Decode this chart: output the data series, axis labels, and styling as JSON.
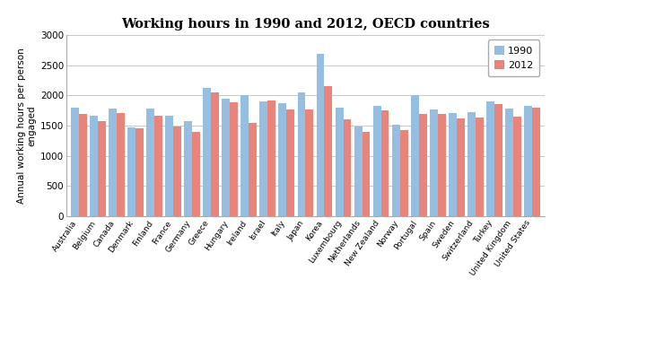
{
  "title": "Working hours in 1990 and 2012, OECD countries",
  "ylabel": "Annual working hours per person\nengaged",
  "categories": [
    "Australia",
    "Belgium",
    "Canada",
    "Denmark",
    "Finland",
    "France",
    "Germany",
    "Greece",
    "Hungary",
    "Ireland",
    "Israel",
    "Italy",
    "Japan",
    "Korea",
    "Luxembourg",
    "Netherlands",
    "New Zealand",
    "Norway",
    "Portugal",
    "Spain",
    "Sweden",
    "Switzerland",
    "Turkey",
    "United Kingdom",
    "United States"
  ],
  "values_1990": [
    1800,
    1670,
    1780,
    1475,
    1780,
    1665,
    1580,
    2120,
    1950,
    2010,
    1900,
    1870,
    2050,
    2680,
    1800,
    1480,
    1820,
    1510,
    2010,
    1770,
    1710,
    1720,
    1900,
    1780,
    1830
  ],
  "values_2012": [
    1700,
    1570,
    1710,
    1450,
    1670,
    1490,
    1390,
    2050,
    1890,
    1540,
    1920,
    1770,
    1770,
    2160,
    1610,
    1400,
    1760,
    1430,
    1690,
    1686,
    1620,
    1640,
    1850,
    1654,
    1790
  ],
  "color_1990": "#95BEE0",
  "color_2012": "#E8847A",
  "ylim": [
    0,
    3000
  ],
  "yticks": [
    0,
    500,
    1000,
    1500,
    2000,
    2500,
    3000
  ],
  "legend_labels": [
    "1990",
    "2012"
  ],
  "background_color": "#ffffff",
  "grid_color": "#c8c8c8"
}
